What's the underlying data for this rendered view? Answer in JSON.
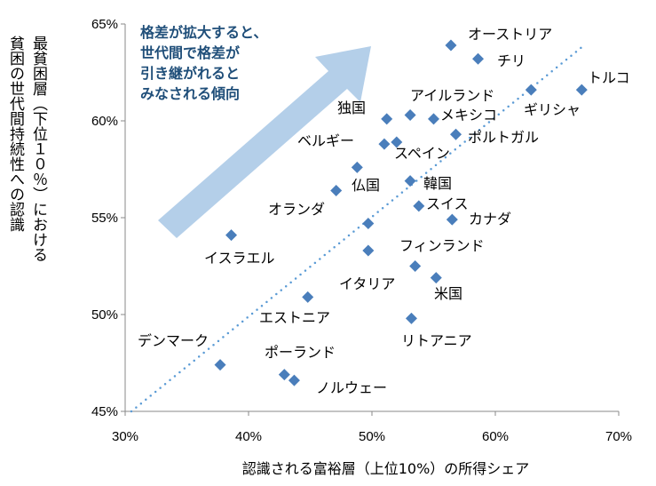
{
  "chart_data": {
    "type": "scatter",
    "xlabel": "認識される富裕層（上位10%）の所得シェア",
    "ylabel_lines": [
      "最貧困層（下位１０％）における",
      "貧困の世代間持続性への認識"
    ],
    "xlim": [
      30,
      70
    ],
    "ylim": [
      45,
      65
    ],
    "x_ticks": [
      "30%",
      "40%",
      "50%",
      "60%",
      "70%"
    ],
    "y_ticks": [
      "45%",
      "50%",
      "55%",
      "60%",
      "65%"
    ],
    "grid": false,
    "annotation_lines": [
      "格差が拡大すると、",
      "世代間で格差が",
      "引き継がれると",
      "みなされる傾向"
    ],
    "trendline": {
      "style": "dotted",
      "from": [
        30.5,
        45.0
      ],
      "to": [
        67.0,
        63.8
      ]
    },
    "points": [
      {
        "label": "オーストリア",
        "x": 56.4,
        "y": 63.9
      },
      {
        "label": "チリ",
        "x": 58.6,
        "y": 63.2
      },
      {
        "label": "トルコ",
        "x": 67.0,
        "y": 61.6
      },
      {
        "label": "ギリシャ",
        "x": 62.9,
        "y": 61.6
      },
      {
        "label": "アイルランド",
        "x": 53.1,
        "y": 60.3
      },
      {
        "label": "メキシコ",
        "x": 55.0,
        "y": 60.1
      },
      {
        "label": "独国",
        "x": 51.2,
        "y": 60.1
      },
      {
        "label": "ポルトガル",
        "x": 56.8,
        "y": 59.3
      },
      {
        "label": "ベルギー",
        "x": 51.0,
        "y": 58.8
      },
      {
        "label": "スペイン",
        "x": 52.0,
        "y": 58.9
      },
      {
        "label": "仏国",
        "x": 48.8,
        "y": 57.6
      },
      {
        "label": "韓国",
        "x": 53.1,
        "y": 56.9
      },
      {
        "label": "オランダ",
        "x": 47.1,
        "y": 56.4
      },
      {
        "label": "スイス",
        "x": 53.8,
        "y": 55.6
      },
      {
        "label": "カナダ",
        "x": 56.5,
        "y": 54.9
      },
      {
        "label": "",
        "x": 49.7,
        "y": 54.7
      },
      {
        "label": "イスラエル",
        "x": 38.6,
        "y": 54.1
      },
      {
        "label": "イタリア",
        "x": 49.7,
        "y": 53.3
      },
      {
        "label": "フィンランド",
        "x": 53.5,
        "y": 52.5
      },
      {
        "label": "米国",
        "x": 55.2,
        "y": 51.9
      },
      {
        "label": "エストニア",
        "x": 44.8,
        "y": 50.9
      },
      {
        "label": "リトアニア",
        "x": 53.2,
        "y": 49.8
      },
      {
        "label": "デンマーク",
        "x": 37.7,
        "y": 47.4
      },
      {
        "label": "ポーランド",
        "x": 42.9,
        "y": 46.9
      },
      {
        "label": "ノルウェー",
        "x": 43.7,
        "y": 46.6
      }
    ],
    "colors": {
      "marker": "#4a7ebb",
      "trend": "#5b9bd5",
      "arrow": "#b4cfe9",
      "annotation": "#1f4e79"
    }
  }
}
